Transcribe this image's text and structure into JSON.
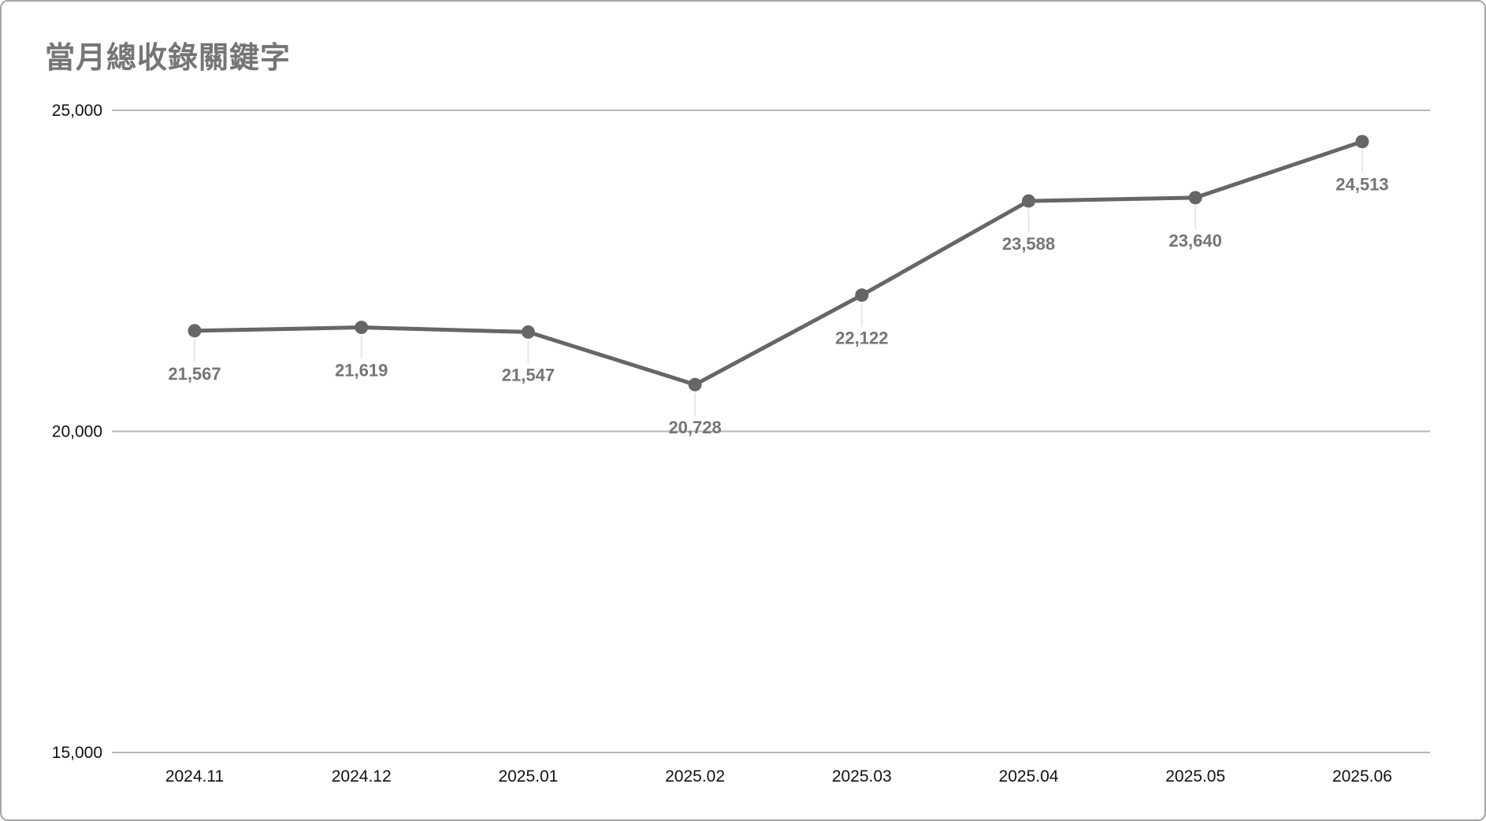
{
  "chart": {
    "title": "當月總收錄關鍵字"
  },
  "chart_data": {
    "type": "line",
    "title": "當月總收錄關鍵字",
    "categories": [
      "2024.11",
      "2024.12",
      "2025.01",
      "2025.02",
      "2025.03",
      "2025.04",
      "2025.05",
      "2025.06"
    ],
    "values": [
      21567,
      21619,
      21547,
      20728,
      22122,
      23588,
      23640,
      24513
    ],
    "value_labels": [
      "21,567",
      "21,619",
      "21,547",
      "20,728",
      "22,122",
      "23,588",
      "23,640",
      "24,513"
    ],
    "xlabel": "",
    "ylabel": "",
    "ylim": [
      15000,
      25000
    ],
    "yticks": [
      25000,
      20000,
      15000
    ],
    "ytick_labels": [
      "25,000",
      "20,000",
      "15,000"
    ],
    "grid": true,
    "legend": false,
    "series_name": "當月總收錄關鍵字"
  },
  "colors": {
    "line": "#666666",
    "point": "#666666",
    "data_label": "#757575",
    "title": "#757575",
    "axis_label": "#111111",
    "gridline": "#b7b7b7",
    "leader_line": "#e7e7e7",
    "card_border": "#a6a6a6",
    "background": "#ffffff"
  }
}
